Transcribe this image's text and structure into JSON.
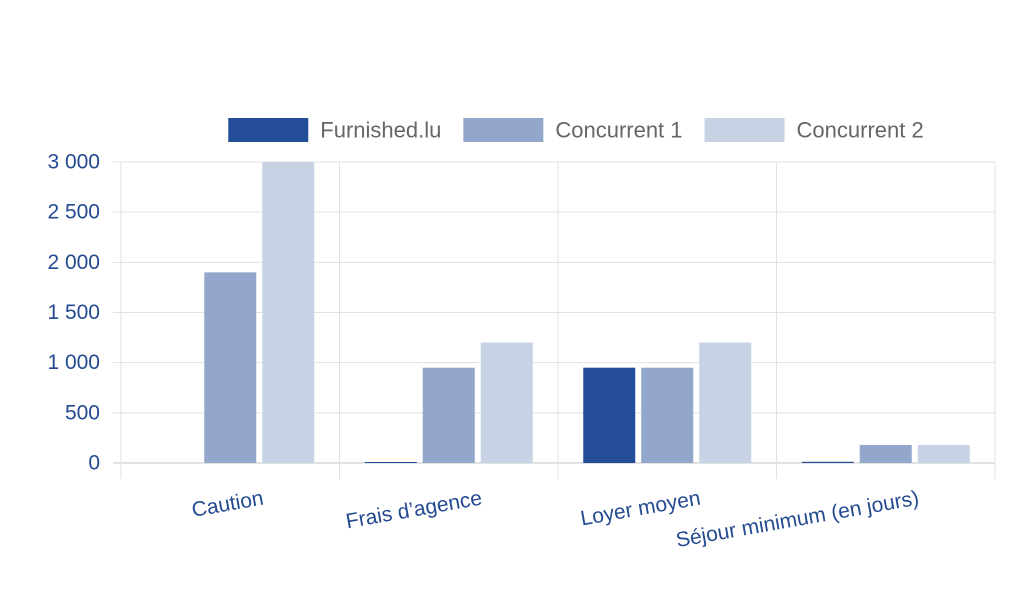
{
  "chart_data": {
    "type": "bar",
    "title": "",
    "xlabel": "",
    "ylabel": "",
    "categories": [
      "Caution",
      "Frais d’agence",
      "Loyer moyen",
      "Séjour minimum (en jours)"
    ],
    "series": [
      {
        "name": "Furnished.lu",
        "color": "#244d97",
        "values": [
          0,
          10,
          950,
          12
        ]
      },
      {
        "name": "Concurrent 1",
        "color": "#93a6cb",
        "values": [
          1900,
          950,
          950,
          180
        ]
      },
      {
        "name": "Concurrent 2",
        "color": "#c8d2e5",
        "values": [
          3000,
          1200,
          1200,
          180
        ]
      }
    ],
    "ylim": [
      0,
      3000
    ],
    "yticks": [
      0,
      500,
      1000,
      1500,
      2000,
      2500,
      3000
    ],
    "ytick_labels": [
      "0",
      "500",
      "1 000",
      "1 500",
      "2 000",
      "2 500",
      "3 000"
    ],
    "grid": true,
    "legend_position": "top"
  }
}
